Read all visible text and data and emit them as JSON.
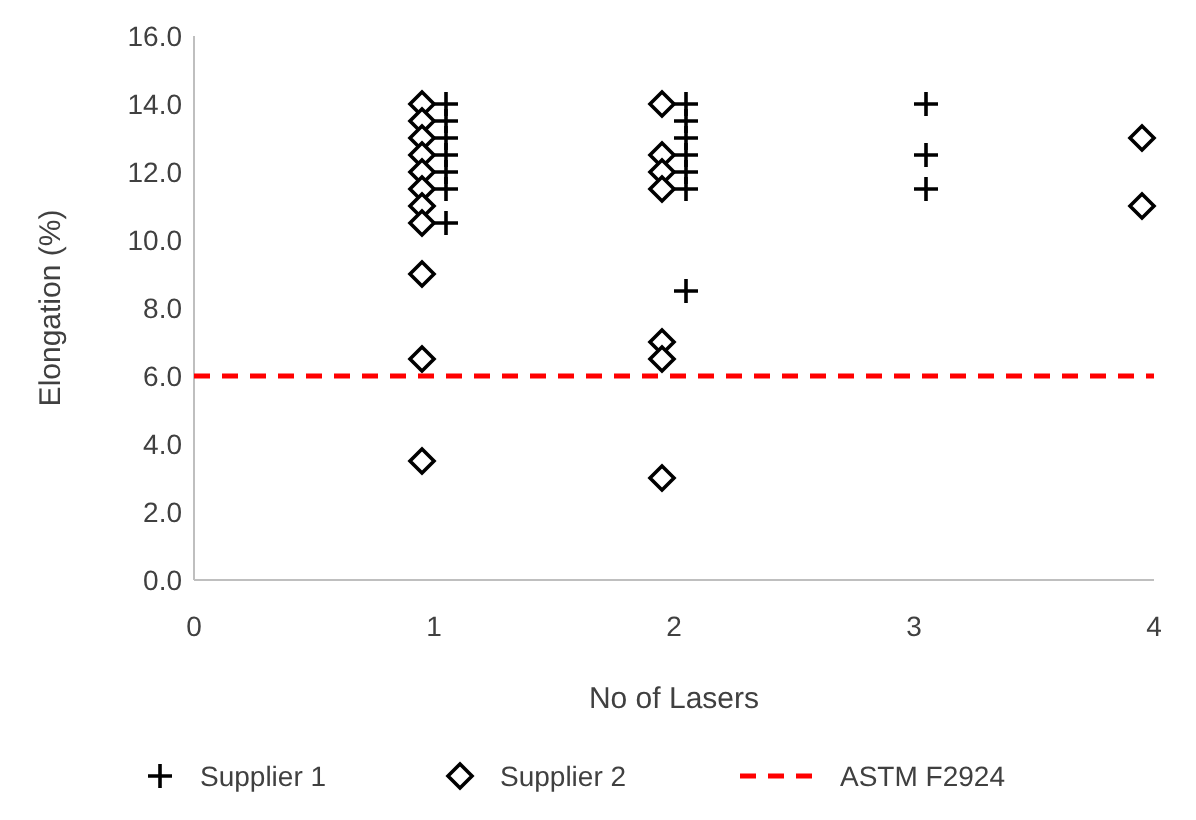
{
  "chart_data": {
    "type": "scatter",
    "xlabel": "No of Lasers",
    "ylabel": "Elongation (%)",
    "xlim": [
      0,
      4
    ],
    "xticks": [
      0,
      1,
      2,
      3,
      4
    ],
    "ylim": [
      0,
      16
    ],
    "yticks": [
      {
        "value": 0,
        "label": "0.0"
      },
      {
        "value": 2,
        "label": "2.0"
      },
      {
        "value": 4,
        "label": "4.0"
      },
      {
        "value": 6,
        "label": "6.0"
      },
      {
        "value": 8,
        "label": "8.0"
      },
      {
        "value": 10,
        "label": "10.0"
      },
      {
        "value": 12,
        "label": "12.0"
      },
      {
        "value": 14,
        "label": "14.0"
      },
      {
        "value": 16,
        "label": "16.0"
      }
    ],
    "grid": false,
    "legend": "bottom",
    "series": [
      {
        "name": "Supplier 1",
        "color": "#000000",
        "marker": "cross",
        "x": [
          1.05,
          1.05,
          1.05,
          1.05,
          1.05,
          1.05,
          1.05,
          2.05,
          2.05,
          2.05,
          2.05,
          2.05,
          2.05,
          2.05,
          3.05,
          3.05,
          3.05
        ],
        "values": [
          14,
          13.5,
          13,
          12.5,
          12,
          11.5,
          10.5,
          14,
          13.5,
          13,
          12.5,
          12,
          11.5,
          8.5,
          14,
          12.5,
          11.5
        ]
      },
      {
        "name": "Supplier 2",
        "color": "#000000",
        "marker": "diamond",
        "x": [
          0.95,
          0.95,
          0.95,
          0.95,
          0.95,
          0.95,
          0.95,
          0.95,
          0.95,
          0.95,
          0.95,
          1.95,
          1.95,
          1.95,
          1.95,
          1.95,
          1.95,
          1.95,
          3.95,
          3.95
        ],
        "values": [
          14,
          13.5,
          13,
          12.5,
          12,
          11.5,
          11,
          10.5,
          9,
          6.5,
          3.5,
          14,
          12.5,
          12,
          11.5,
          7,
          6.5,
          3,
          13,
          11
        ]
      }
    ],
    "ref_lines": [
      {
        "axis": "y",
        "value": 6,
        "label": "ASTM F2924",
        "color": "#ff0000",
        "line_style": "dashed"
      }
    ]
  }
}
